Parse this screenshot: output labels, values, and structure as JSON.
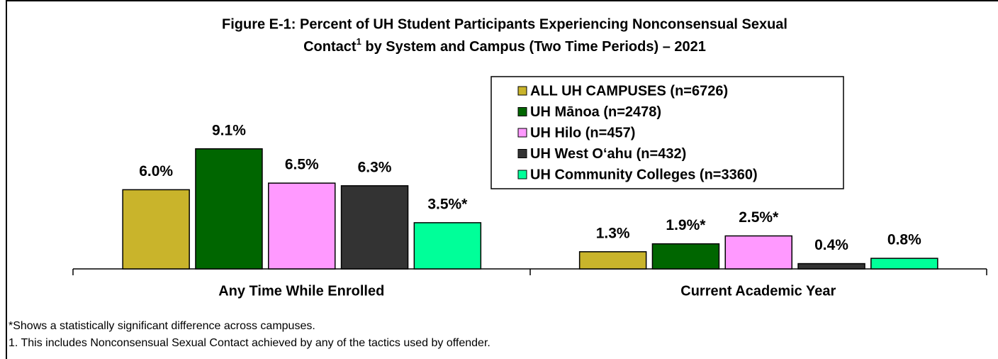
{
  "chart_data": {
    "type": "bar",
    "title": [
      "Figure E-1:  Percent of UH Student Participants Experiencing Nonconsensual Sexual",
      "Contact",
      "1",
      " by System and Campus (Two Time Periods) – 2021"
    ],
    "categories": [
      "Any Time While Enrolled",
      "Current Academic Year"
    ],
    "series": [
      {
        "name": "ALL UH CAMPUSES (n=6726)",
        "color": "#c9b42b",
        "values": [
          6.0,
          1.3
        ],
        "value_labels": [
          "6.0%",
          "1.3%"
        ]
      },
      {
        "name": "UH Mānoa (n=2478)",
        "color": "#006600",
        "values": [
          9.1,
          1.9
        ],
        "value_labels": [
          "9.1%",
          "1.9%*"
        ]
      },
      {
        "name": "UH Hilo (n=457)",
        "color": "#ff99ff",
        "values": [
          6.5,
          2.5
        ],
        "value_labels": [
          "6.5%",
          "2.5%*"
        ]
      },
      {
        "name": "UH West O‘ahu (n=432)",
        "color": "#333333",
        "values": [
          6.3,
          0.4
        ],
        "value_labels": [
          "6.3%",
          "0.4%"
        ]
      },
      {
        "name": "UH Community Colleges (n=3360)",
        "color": "#00ff99",
        "values": [
          3.5,
          0.8
        ],
        "value_labels": [
          "3.5%*",
          "0.8%"
        ]
      }
    ],
    "ylim": [
      0,
      10
    ],
    "legend": "upper right",
    "footnotes": [
      "*Shows a statistically significant difference across campuses.",
      "1. This includes Nonconsensual Sexual Contact achieved by any of the tactics used by offender."
    ]
  }
}
